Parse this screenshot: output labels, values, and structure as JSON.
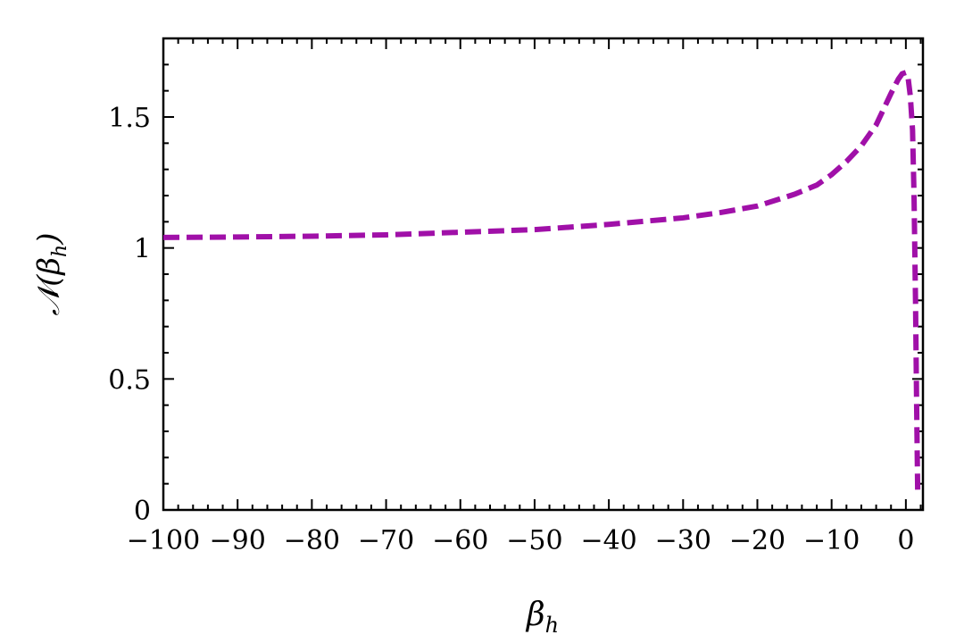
{
  "chart_data": {
    "type": "line",
    "title": "",
    "xlabel": {
      "main": "β",
      "sub": "h"
    },
    "ylabel": {
      "prefix": "𝒩(β",
      "sub": "h",
      "suffix": ")"
    },
    "xlim": [
      -100,
      2.3
    ],
    "ylim": [
      0,
      1.8
    ],
    "xticks": [
      -100,
      -90,
      -80,
      -70,
      -60,
      -50,
      -40,
      -30,
      -20,
      -10,
      0
    ],
    "xtick_labels": [
      "−100",
      "−90",
      "−80",
      "−70",
      "−60",
      "−50",
      "−40",
      "−30",
      "−20",
      "−10",
      "0"
    ],
    "yticks": [
      0,
      0.5,
      1,
      1.5
    ],
    "ytick_labels": [
      "0",
      "0.5",
      "1",
      "1.5"
    ],
    "grid": false,
    "series": [
      {
        "color": "#A010A8",
        "style": "dashed",
        "x": [
          -100,
          -90,
          -80,
          -70,
          -60,
          -50,
          -40,
          -30,
          -25,
          -20,
          -15,
          -12,
          -10,
          -8,
          -6,
          -4,
          -3,
          -2,
          -1,
          -0.5,
          0,
          0.3,
          0.6,
          0.9,
          1.1,
          1.3,
          1.45,
          1.6
        ],
        "y": [
          1.04,
          1.042,
          1.045,
          1.05,
          1.06,
          1.07,
          1.09,
          1.115,
          1.135,
          1.16,
          1.205,
          1.24,
          1.28,
          1.33,
          1.39,
          1.47,
          1.53,
          1.59,
          1.645,
          1.665,
          1.67,
          1.65,
          1.58,
          1.45,
          1.2,
          0.8,
          0.4,
          0.05
        ]
      }
    ]
  }
}
